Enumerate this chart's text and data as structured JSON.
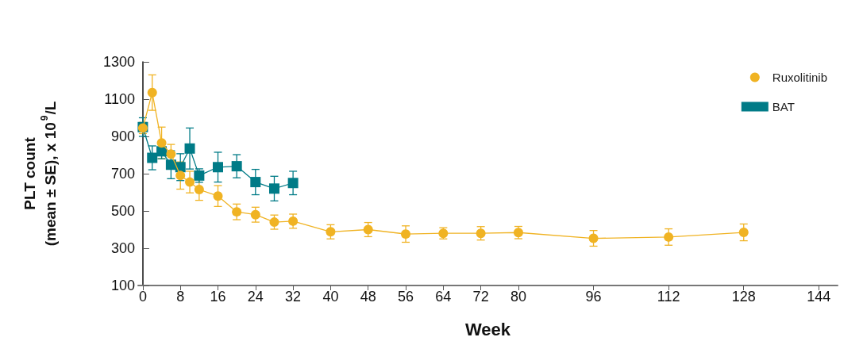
{
  "chart_data": {
    "type": "line",
    "xlabel": "Week",
    "ylabel": "PLT count\n(mean ± SE), x 10$^{9}$/L",
    "xlim": [
      -1,
      148
    ],
    "xticks": [
      0,
      8,
      16,
      24,
      32,
      40,
      48,
      56,
      64,
      72,
      80,
      96,
      112,
      128,
      144
    ],
    "ylim": [
      100,
      1300
    ],
    "yticks": [
      100,
      300,
      500,
      700,
      900,
      1100,
      1300
    ],
    "grid": false,
    "legend": "top right",
    "line_style": "solid",
    "series": [
      {
        "name": "Ruxolitinib",
        "color": "#f0b323",
        "marker": "circle",
        "x": [
          0,
          2,
          4,
          6,
          8,
          10,
          12,
          16,
          20,
          24,
          28,
          32,
          40,
          48,
          56,
          64,
          72,
          80,
          96,
          112,
          128
        ],
        "values": [
          945,
          1135,
          865,
          805,
          690,
          655,
          615,
          580,
          495,
          480,
          440,
          445,
          388,
          400,
          376,
          380,
          380,
          384,
          353,
          360,
          385
        ],
        "errors": [
          30,
          95,
          85,
          52,
          73,
          58,
          58,
          56,
          42,
          40,
          38,
          38,
          38,
          38,
          44,
          30,
          36,
          33,
          42,
          44,
          45
        ]
      },
      {
        "name": "BAT",
        "color": "#007b87",
        "marker": "square",
        "x": [
          0,
          2,
          4,
          6,
          8,
          10,
          12,
          16,
          20,
          24,
          28,
          32
        ],
        "values": [
          950,
          785,
          820,
          748,
          735,
          835,
          690,
          735,
          740,
          655,
          620,
          650
        ],
        "errors": [
          50,
          64,
          40,
          75,
          72,
          110,
          36,
          80,
          62,
          68,
          66,
          63
        ]
      }
    ]
  }
}
